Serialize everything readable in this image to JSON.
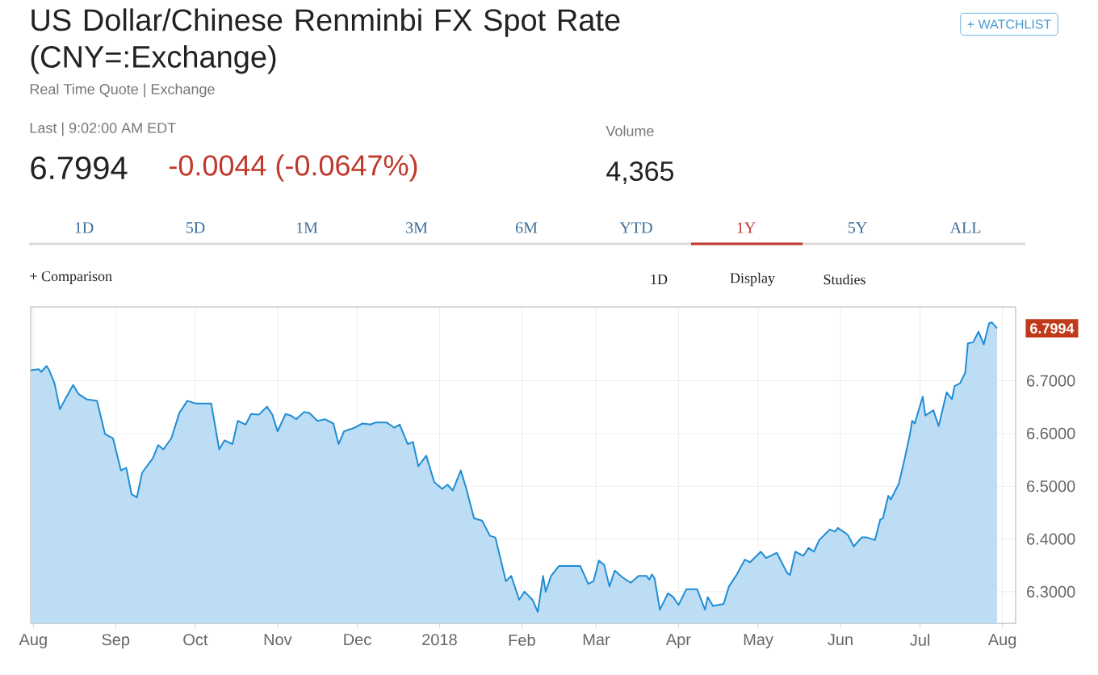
{
  "chart_data": {
    "type": "area",
    "title": "US Dollar/Chinese Renminbi FX Spot Rate (CNY=:Exchange)",
    "subtitle": "Real Time Quote | Exchange",
    "annotations": [
      "Last | 9:02:00 AM EDT",
      "6.7994",
      "-0.0044 (-0.0647%)",
      "Volume",
      "4,365",
      "+ WATCHLIST",
      "1D",
      "5D",
      "1M",
      "3M",
      "6M",
      "YTD",
      "1Y",
      "5Y",
      "ALL",
      "+ Comparison",
      "1D",
      "Display",
      "Studies",
      {
        "text": "6.7994",
        "x": "2018-07-30",
        "y": 6.7994
      }
    ],
    "x": [
      "2017-07-31",
      "2017-08-03",
      "2017-08-04",
      "2017-08-06",
      "2017-08-07",
      "2017-08-09",
      "2017-08-11",
      "2017-08-13",
      "2017-08-16",
      "2017-08-18",
      "2017-08-21",
      "2017-08-25",
      "2017-08-28",
      "2017-08-31",
      "2017-09-03",
      "2017-09-05",
      "2017-09-07",
      "2017-09-09",
      "2017-09-11",
      "2017-09-15",
      "2017-09-17",
      "2017-09-19",
      "2017-09-22",
      "2017-09-25",
      "2017-09-28",
      "2017-10-01",
      "2017-10-07",
      "2017-10-10",
      "2017-10-12",
      "2017-10-15",
      "2017-10-17",
      "2017-10-20",
      "2017-10-22",
      "2017-10-25",
      "2017-10-28",
      "2017-10-30",
      "2017-11-01",
      "2017-11-04",
      "2017-11-06",
      "2017-11-08",
      "2017-11-11",
      "2017-11-13",
      "2017-11-16",
      "2017-11-19",
      "2017-11-22",
      "2017-11-24",
      "2017-11-26",
      "2017-11-30",
      "2017-12-03",
      "2017-12-06",
      "2017-12-08",
      "2017-12-12",
      "2017-12-15",
      "2017-12-17",
      "2017-12-20",
      "2017-12-22",
      "2017-12-24",
      "2017-12-27",
      "2017-12-30",
      "2018-01-02",
      "2018-01-04",
      "2018-01-06",
      "2018-01-09",
      "2018-01-11",
      "2018-01-14",
      "2018-01-17",
      "2018-01-20",
      "2018-01-22",
      "2018-01-26",
      "2018-01-28",
      "2018-01-31",
      "2018-02-02",
      "2018-02-05",
      "2018-02-07",
      "2018-02-09",
      "2018-02-10",
      "2018-02-12",
      "2018-02-15",
      "2018-02-23",
      "2018-02-26",
      "2018-02-28",
      "2018-03-02",
      "2018-03-04",
      "2018-03-06",
      "2018-03-08",
      "2018-03-11",
      "2018-03-14",
      "2018-03-17",
      "2018-03-20",
      "2018-03-21",
      "2018-03-22",
      "2018-03-23",
      "2018-03-25",
      "2018-03-28",
      "2018-03-30",
      "2018-04-01",
      "2018-04-04",
      "2018-04-08",
      "2018-04-11",
      "2018-04-12",
      "2018-04-14",
      "2018-04-18",
      "2018-04-20",
      "2018-04-23",
      "2018-04-26",
      "2018-04-28",
      "2018-05-02",
      "2018-05-04",
      "2018-05-08",
      "2018-05-12",
      "2018-05-13",
      "2018-05-15",
      "2018-05-18",
      "2018-05-20",
      "2018-05-22",
      "2018-05-24",
      "2018-05-28",
      "2018-05-30",
      "2018-05-31",
      "2018-06-03",
      "2018-06-04",
      "2018-06-06",
      "2018-06-09",
      "2018-06-11",
      "2018-06-14",
      "2018-06-16",
      "2018-06-17",
      "2018-06-19",
      "2018-06-20",
      "2018-06-23",
      "2018-06-25",
      "2018-06-27",
      "2018-06-28",
      "2018-06-29",
      "2018-07-02",
      "2018-07-03",
      "2018-07-06",
      "2018-07-08",
      "2018-07-11",
      "2018-07-13",
      "2018-07-14",
      "2018-07-16",
      "2018-07-18",
      "2018-07-19",
      "2018-07-21",
      "2018-07-23",
      "2018-07-25",
      "2018-07-27",
      "2018-07-28",
      "2018-07-30"
    ],
    "series": [
      {
        "color": "#1f8dd6",
        "values": [
          6.72,
          6.722,
          6.717,
          6.728,
          6.72,
          6.695,
          6.646,
          6.665,
          6.692,
          6.675,
          6.665,
          6.662,
          6.599,
          6.591,
          6.53,
          6.535,
          6.485,
          6.479,
          6.526,
          6.553,
          6.578,
          6.57,
          6.591,
          6.639,
          6.662,
          6.657,
          6.657,
          6.57,
          6.587,
          6.58,
          6.624,
          6.617,
          6.637,
          6.636,
          6.651,
          6.636,
          6.604,
          6.637,
          6.634,
          6.627,
          6.641,
          6.639,
          6.624,
          6.627,
          6.619,
          6.58,
          6.604,
          6.611,
          6.619,
          6.617,
          6.621,
          6.621,
          6.611,
          6.617,
          6.58,
          6.584,
          6.538,
          6.558,
          6.508,
          6.495,
          6.503,
          6.492,
          6.53,
          6.497,
          6.439,
          6.435,
          6.406,
          6.403,
          6.32,
          6.33,
          6.285,
          6.3,
          6.285,
          6.262,
          6.33,
          6.3,
          6.33,
          6.349,
          6.349,
          6.315,
          6.32,
          6.359,
          6.351,
          6.31,
          6.34,
          6.327,
          6.317,
          6.33,
          6.33,
          6.323,
          6.333,
          6.325,
          6.266,
          6.297,
          6.29,
          6.275,
          6.305,
          6.305,
          6.266,
          6.29,
          6.273,
          6.277,
          6.31,
          6.333,
          6.361,
          6.356,
          6.376,
          6.364,
          6.374,
          6.335,
          6.332,
          6.376,
          6.368,
          6.383,
          6.376,
          6.398,
          6.418,
          6.414,
          6.421,
          6.411,
          6.406,
          6.386,
          6.403,
          6.403,
          6.398,
          6.437,
          6.439,
          6.482,
          6.475,
          6.505,
          6.548,
          6.594,
          6.624,
          6.619,
          6.67,
          6.634,
          6.644,
          6.614,
          6.678,
          6.665,
          6.69,
          6.695,
          6.715,
          6.771,
          6.773,
          6.793,
          6.769,
          6.809,
          6.811,
          6.7994
        ]
      }
    ],
    "xlim": [
      "2017-07-31",
      "2018-08-06"
    ],
    "xticks": [
      {
        "value": "2017-08-01",
        "label": "Aug"
      },
      {
        "value": "2017-09-01",
        "label": "Sep"
      },
      {
        "value": "2017-10-01",
        "label": "Oct"
      },
      {
        "value": "2017-11-01",
        "label": "Nov"
      },
      {
        "value": "2017-12-01",
        "label": "Dec"
      },
      {
        "value": "2018-01-01",
        "label": "2018"
      },
      {
        "value": "2018-02-01",
        "label": "Feb"
      },
      {
        "value": "2018-03-01",
        "label": "Mar"
      },
      {
        "value": "2018-04-01",
        "label": "Apr"
      },
      {
        "value": "2018-05-01",
        "label": "May"
      },
      {
        "value": "2018-06-01",
        "label": "Jun"
      },
      {
        "value": "2018-07-01",
        "label": "Jul"
      },
      {
        "value": "2018-08-01",
        "label": "Aug"
      }
    ],
    "ylim": [
      6.24,
      6.84
    ],
    "yticks": [
      {
        "value": 6.3,
        "label": "6.3000"
      },
      {
        "value": 6.4,
        "label": "6.4000"
      },
      {
        "value": 6.5,
        "label": "6.5000"
      },
      {
        "value": 6.6,
        "label": "6.6000"
      },
      {
        "value": 6.7,
        "label": "6.7000"
      }
    ],
    "grid": true
  }
}
